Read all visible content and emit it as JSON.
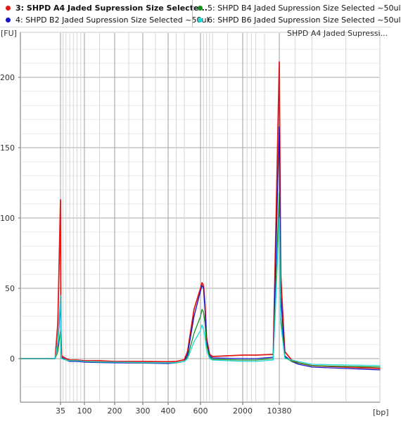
{
  "legend": [
    {
      "number": "3",
      "label": "SHPD A4 Jaded Supression Size Selecte...",
      "color": "#e01818",
      "selected": true
    },
    {
      "number": "4",
      "label": "SHPD B2 Jaded Supression Size Selected ~50ul",
      "color": "#1414c8"
    },
    {
      "number": "5",
      "label": "SHPD B4 Jaded Supression Size Selected ~50ul",
      "color": "#13901a"
    },
    {
      "number": "6",
      "label": "SHPD B6 Jaded Supression Size Selected ~50ul",
      "color": "#22d8d8"
    }
  ],
  "chart_data": {
    "type": "line",
    "title": "SHPD A4 Jaded Supressi...",
    "ylabel": "[FU]",
    "xlabel": "[bp]",
    "yticks": [
      "0",
      "50",
      "100",
      "150",
      "200"
    ],
    "xticks": [
      "35",
      "100",
      "200",
      "300",
      "400",
      "600",
      "2000",
      "10380"
    ],
    "ylim": [
      -30,
      230
    ],
    "grid": true,
    "series": [
      {
        "name": "SHPD A4 Jaded Supression Size Selecte...",
        "color": "#e01818",
        "x": [
          20,
          33,
          34,
          35,
          36,
          38,
          50,
          60,
          80,
          100,
          150,
          200,
          300,
          400,
          450,
          500,
          520,
          560,
          600,
          650,
          700,
          750,
          800,
          900,
          1000,
          2000,
          5000,
          9000,
          10380,
          10800,
          12000,
          14000,
          16000,
          20000,
          40000
        ],
        "y": [
          0,
          0,
          25,
          113,
          20,
          2,
          0,
          -1,
          -1,
          -1.5,
          -1.5,
          -2,
          -2,
          -2.2,
          -2,
          -0.8,
          5,
          35,
          50,
          54,
          52,
          38,
          15,
          3,
          1.5,
          2.5,
          2.5,
          3,
          211,
          60,
          5,
          -1,
          -3,
          -5,
          -7
        ]
      },
      {
        "name": "SHPD B2 Jaded Supression Size Selected ~50ul",
        "color": "#1414c8",
        "x": [
          20,
          33,
          34,
          35,
          36,
          38,
          50,
          60,
          80,
          100,
          150,
          200,
          300,
          400,
          450,
          500,
          520,
          560,
          600,
          650,
          700,
          750,
          800,
          900,
          1000,
          2000,
          5000,
          9000,
          10380,
          10800,
          12000,
          14000,
          16000,
          20000,
          40000
        ],
        "y": [
          0,
          0,
          10,
          40,
          8,
          1,
          -1,
          -2,
          -2,
          -2.5,
          -2.8,
          -3,
          -3.2,
          -3.5,
          -3,
          -2,
          3,
          30,
          48,
          52,
          50,
          35,
          12,
          2,
          0.5,
          0,
          0,
          1,
          165,
          45,
          2,
          -2,
          -4,
          -6,
          -8
        ]
      },
      {
        "name": "SHPD B4 Jaded Supression Size Selected ~50ul",
        "color": "#13901a",
        "x": [
          20,
          33,
          34,
          35,
          36,
          38,
          50,
          60,
          80,
          100,
          150,
          200,
          300,
          400,
          450,
          500,
          520,
          560,
          600,
          650,
          700,
          750,
          800,
          900,
          1000,
          2000,
          5000,
          9000,
          10380,
          10800,
          12000,
          14000,
          16000,
          20000,
          40000
        ],
        "y": [
          0,
          0,
          5,
          20,
          4,
          0,
          -1,
          -1.5,
          -1.5,
          -2,
          -2.5,
          -2.5,
          -3,
          -3,
          -3,
          -2,
          1,
          18,
          30,
          35,
          33,
          25,
          10,
          1,
          -0.5,
          -1,
          -1,
          0,
          118,
          30,
          1,
          -2,
          -3,
          -5,
          -6
        ]
      },
      {
        "name": "SHPD B6 Jaded Supression Size Selected ~50ul",
        "color": "#22d8d8",
        "x": [
          20,
          33,
          34,
          35,
          36,
          38,
          50,
          60,
          80,
          100,
          150,
          200,
          300,
          400,
          450,
          500,
          520,
          560,
          600,
          650,
          700,
          750,
          800,
          900,
          1000,
          2000,
          5000,
          9000,
          10380,
          10800,
          12000,
          14000,
          16000,
          20000,
          40000
        ],
        "y": [
          0,
          0,
          12,
          45,
          6,
          0,
          -1,
          -1.5,
          -1.5,
          -2,
          -2.3,
          -2.5,
          -2.8,
          -3,
          -2.8,
          -2,
          0,
          12,
          20,
          24,
          21,
          15,
          6,
          0,
          -1,
          -2,
          -2,
          -1,
          100,
          25,
          0,
          -1,
          -2,
          -4,
          -5
        ]
      }
    ]
  }
}
